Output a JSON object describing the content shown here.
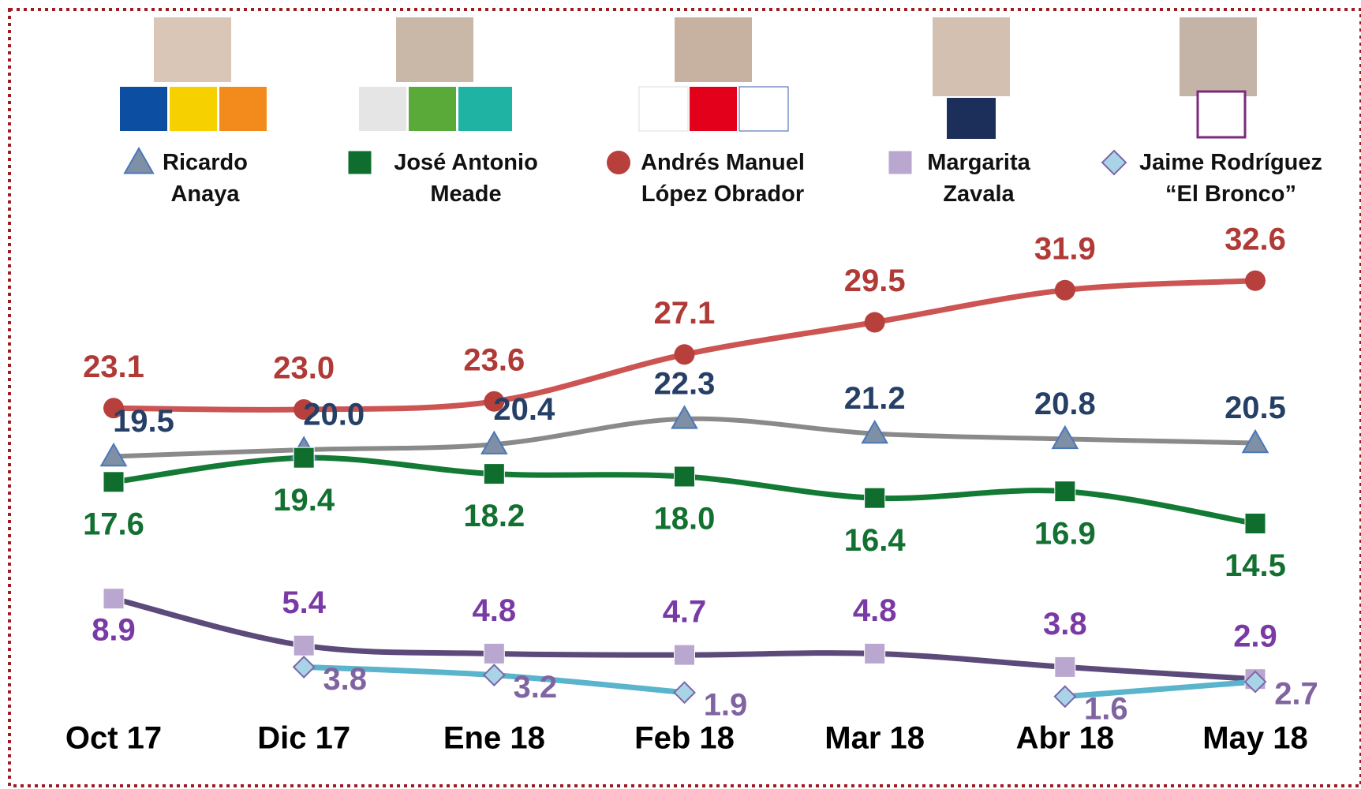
{
  "chart_data": {
    "type": "line",
    "categories": [
      "Oct 17",
      "Dic 17",
      "Ene 18",
      "Feb 18",
      "Mar 18",
      "Abr 18",
      "May 18"
    ],
    "ylim": [
      0,
      35
    ],
    "series": [
      {
        "name": "Ricardo Anaya",
        "color": "#8a8a8a",
        "marker": "triangle",
        "marker_color": "#7f8fa6",
        "label_color": "#253f66",
        "values": [
          19.5,
          20.0,
          20.4,
          22.3,
          21.2,
          20.8,
          20.5
        ],
        "value_labels": [
          "19.5",
          "20.0",
          "20.4",
          "22.3",
          "21.2",
          "20.8",
          "20.5"
        ]
      },
      {
        "name": "José Antonio Meade",
        "color": "#137a36",
        "marker": "square",
        "marker_color": "#0f6e2e",
        "label_color": "#127030",
        "values": [
          17.6,
          19.4,
          18.2,
          18.0,
          16.4,
          16.9,
          14.5
        ],
        "value_labels": [
          "17.6",
          "19.4",
          "18.2",
          "18.0",
          "16.4",
          "16.9",
          "14.5"
        ]
      },
      {
        "name": "Andrés Manuel López Obrador",
        "color": "#cc5452",
        "marker": "circle",
        "marker_color": "#b8403c",
        "label_color": "#b03a36",
        "values": [
          23.1,
          23.0,
          23.6,
          27.1,
          29.5,
          31.9,
          32.6
        ],
        "value_labels": [
          "23.1",
          "23.0",
          "23.6",
          "27.1",
          "29.5",
          "31.9",
          "32.6"
        ]
      },
      {
        "name": "Margarita Zavala",
        "color": "#5b4a7a",
        "marker": "square",
        "marker_color": "#b9a7d0",
        "label_color": "#7a3aa5",
        "values": [
          8.9,
          5.4,
          4.8,
          4.7,
          4.8,
          3.8,
          2.9
        ],
        "value_labels": [
          "8.9",
          "5.4",
          "4.8",
          "4.7",
          "4.8",
          "3.8",
          "2.9"
        ]
      },
      {
        "name": "Jaime Rodríguez “El Bronco”",
        "color": "#5ab4cc",
        "marker": "diamond",
        "marker_color": "#a9d3e6",
        "label_color": "#8064a2",
        "values": [
          null,
          3.8,
          3.2,
          1.9,
          null,
          1.6,
          2.7
        ],
        "value_labels": [
          null,
          "3.8",
          "3.2",
          "1.9",
          null,
          "1.6",
          "2.7"
        ]
      }
    ]
  }
}
